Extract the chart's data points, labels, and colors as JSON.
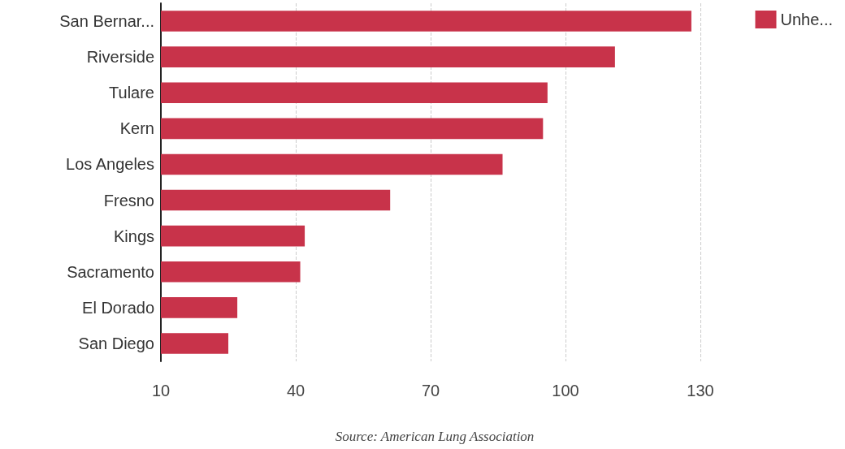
{
  "chart_data": {
    "type": "bar",
    "orientation": "horizontal",
    "categories": [
      "San Bernar...",
      "Riverside",
      "Tulare",
      "Kern",
      "Los Angeles",
      "Fresno",
      "Kings",
      "Sacramento",
      "El Dorado",
      "San Diego"
    ],
    "series": [
      {
        "name": "Unhe...",
        "color": "#c8334a",
        "values": [
          128,
          111,
          96,
          95,
          86,
          61,
          42,
          41,
          27,
          25
        ]
      }
    ],
    "xlim": [
      10,
      130
    ],
    "xticks": [
      10,
      40,
      70,
      100,
      130
    ],
    "grid": "x",
    "legend": "top right",
    "annotations": [
      "Source: American Lung Association"
    ]
  }
}
